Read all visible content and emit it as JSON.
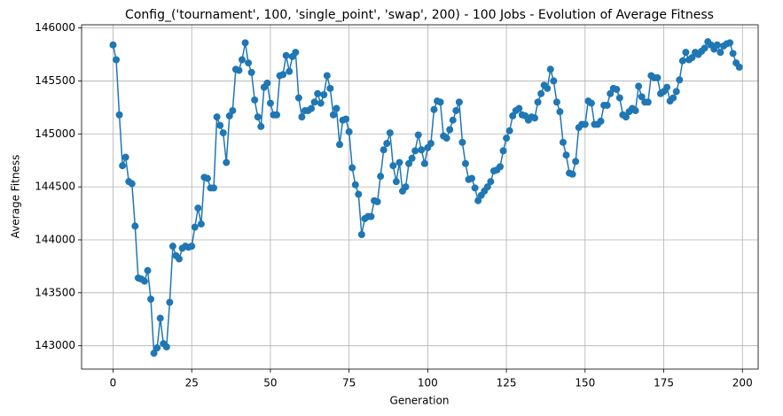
{
  "chart_data": {
    "type": "line",
    "title": "Config_('tournament', 100, 'single_point', 'swap', 200) - 100 Jobs - Evolution of Average Fitness",
    "x_label": "Generation",
    "y_label": "Average Fitness",
    "x": [
      0,
      1,
      2,
      3,
      4,
      5,
      6,
      7,
      8,
      9,
      10,
      11,
      12,
      13,
      14,
      15,
      16,
      17,
      18,
      19,
      20,
      21,
      22,
      23,
      24,
      25,
      26,
      27,
      28,
      29,
      30,
      31,
      32,
      33,
      34,
      35,
      36,
      37,
      38,
      39,
      40,
      41,
      42,
      43,
      44,
      45,
      46,
      47,
      48,
      49,
      50,
      51,
      52,
      53,
      54,
      55,
      56,
      57,
      58,
      59,
      60,
      61,
      62,
      63,
      64,
      65,
      66,
      67,
      68,
      69,
      70,
      71,
      72,
      73,
      74,
      75,
      76,
      77,
      78,
      79,
      80,
      81,
      82,
      83,
      84,
      85,
      86,
      87,
      88,
      89,
      90,
      91,
      92,
      93,
      94,
      95,
      96,
      97,
      98,
      99,
      100,
      101,
      102,
      103,
      104,
      105,
      106,
      107,
      108,
      109,
      110,
      111,
      112,
      113,
      114,
      115,
      116,
      117,
      118,
      119,
      120,
      121,
      122,
      123,
      124,
      125,
      126,
      127,
      128,
      129,
      130,
      131,
      132,
      133,
      134,
      135,
      136,
      137,
      138,
      139,
      140,
      141,
      142,
      143,
      144,
      145,
      146,
      147,
      148,
      149,
      150,
      151,
      152,
      153,
      154,
      155,
      156,
      157,
      158,
      159,
      160,
      161,
      162,
      163,
      164,
      165,
      166,
      167,
      168,
      169,
      170,
      171,
      172,
      173,
      174,
      175,
      176,
      177,
      178,
      179,
      180,
      181,
      182,
      183,
      184,
      185,
      186,
      187,
      188,
      189,
      190,
      191,
      192,
      193,
      194,
      195,
      196,
      197,
      198,
      199
    ],
    "series": [
      {
        "name": "Average Fitness",
        "color": "#1f77b4",
        "values": [
          145840,
          145700,
          145180,
          144700,
          144780,
          144550,
          144530,
          144130,
          143640,
          143630,
          143610,
          143710,
          143440,
          142930,
          142980,
          143260,
          143020,
          142990,
          143410,
          143940,
          143850,
          143820,
          143920,
          143940,
          143930,
          143940,
          144120,
          144300,
          144150,
          144590,
          144580,
          144490,
          144490,
          145160,
          145080,
          145010,
          144730,
          145170,
          145220,
          145610,
          145600,
          145700,
          145860,
          145670,
          145580,
          145320,
          145160,
          145070,
          145440,
          145480,
          145290,
          145180,
          145180,
          145550,
          145560,
          145740,
          145590,
          145730,
          145770,
          145340,
          145160,
          145220,
          145220,
          145240,
          145300,
          145380,
          145290,
          145370,
          145550,
          145430,
          145180,
          145240,
          144900,
          145130,
          145140,
          145020,
          144680,
          144520,
          144430,
          144050,
          144200,
          144220,
          144220,
          144370,
          144360,
          144600,
          144850,
          144910,
          145010,
          144700,
          144550,
          144730,
          144460,
          144500,
          144720,
          144770,
          144840,
          144990,
          144850,
          144720,
          144870,
          144910,
          145230,
          145310,
          145300,
          144980,
          144960,
          145040,
          145130,
          145220,
          145300,
          144920,
          144720,
          144570,
          144580,
          144490,
          144370,
          144420,
          144460,
          144500,
          144550,
          144650,
          144660,
          144690,
          144840,
          144960,
          145030,
          145170,
          145220,
          145240,
          145180,
          145170,
          145130,
          145160,
          145150,
          145300,
          145380,
          145460,
          145430,
          145610,
          145500,
          145300,
          145210,
          144920,
          144800,
          144630,
          144620,
          144740,
          145060,
          145090,
          145090,
          145310,
          145290,
          145090,
          145090,
          145120,
          145270,
          145270,
          145380,
          145430,
          145420,
          145340,
          145180,
          145160,
          145210,
          145240,
          145220,
          145450,
          145350,
          145300,
          145300,
          145550,
          145530,
          145530,
          145380,
          145400,
          145440,
          145310,
          145340,
          145400,
          145510,
          145690,
          145770,
          145700,
          145720,
          145770,
          145750,
          145780,
          145810,
          145870,
          145840,
          145800,
          145840,
          145770,
          145830,
          145850,
          145860,
          145760,
          145670,
          145630
        ]
      }
    ],
    "xlim": [
      -10,
      205
    ],
    "xticks": [
      0,
      25,
      50,
      75,
      100,
      125,
      150,
      175,
      200
    ],
    "ylim": [
      142780,
      146030
    ],
    "yticks": [
      143000,
      143500,
      144000,
      144500,
      145000,
      145500,
      146000
    ],
    "grid": true
  }
}
